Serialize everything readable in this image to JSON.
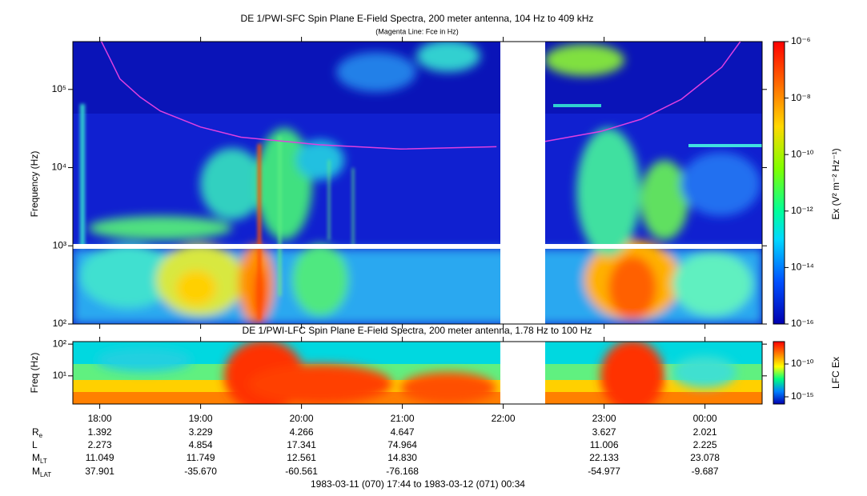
{
  "chart_data": [
    {
      "type": "spectrogram",
      "title": "DE 1/PWI-SFC  Spin Plane E-Field Spectra, 200 meter antenna, 104 Hz to 409 kHz",
      "subtitle": "(Magenta Line: Fce in Hz)",
      "ylabel": "Frequency (Hz)",
      "log_y": true,
      "ylim": [
        100,
        409000
      ],
      "yticks": [
        {
          "value": 100,
          "label": "10²"
        },
        {
          "value": 1000,
          "label": "10³"
        },
        {
          "value": 10000,
          "label": "10⁴"
        },
        {
          "value": 100000,
          "label": "10⁵"
        }
      ],
      "colorbar": {
        "label": "Ex (V² m⁻² Hz⁻¹)",
        "clim": [
          1e-16,
          1e-06
        ],
        "ticks": [
          {
            "value": 1e-06,
            "label": "10⁻⁶"
          },
          {
            "value": 1e-08,
            "label": "10⁻⁸"
          },
          {
            "value": 1e-10,
            "label": "10⁻¹⁰"
          },
          {
            "value": 1e-12,
            "label": "10⁻¹²"
          },
          {
            "value": 1e-14,
            "label": "10⁻¹⁴"
          },
          {
            "value": 1e-16,
            "label": "10⁻¹⁶"
          }
        ]
      },
      "fce": {
        "color": "#e040e0",
        "x": [
          17,
          22,
          28,
          40,
          52,
          76,
          100,
          147,
          195,
          252,
          266,
          281,
          314,
          338,
          362,
          386,
          397
        ],
        "y": [
          409000,
          250000,
          136000,
          80000,
          53000,
          33000,
          24500,
          19600,
          17300,
          18500,
          null,
          21600,
          29000,
          41600,
          75000,
          193000,
          409000
        ]
      }
    },
    {
      "type": "spectrogram",
      "title": "DE 1/PWI-LFC  Spin Plane E-Field Spectra, 200 meter antenna, 1.78 Hz to 100 Hz",
      "ylabel": "Freq (Hz)",
      "log_y": true,
      "ylim": [
        1.3,
        120
      ],
      "yticks": [
        {
          "value": 10,
          "label": "10¹"
        },
        {
          "value": 100,
          "label": "10²"
        }
      ],
      "colorbar": {
        "label": "LFC Ex",
        "clim": [
          8e-17,
          2.6e-07
        ],
        "ticks": [
          {
            "value": 1e-10,
            "label": "10⁻¹⁰"
          },
          {
            "value": 1e-15,
            "label": "10⁻¹⁵"
          }
        ]
      }
    }
  ],
  "x_axis": {
    "xlim": [
      0,
      410
    ],
    "xticks": [
      {
        "value": 16,
        "label": "18:00"
      },
      {
        "value": 76,
        "label": "19:00"
      },
      {
        "value": 136,
        "label": "20:00"
      },
      {
        "value": 196,
        "label": "21:00"
      },
      {
        "value": 256,
        "label": "22:00"
      },
      {
        "value": 316,
        "label": "23:00"
      },
      {
        "value": 376,
        "label": "00:00"
      }
    ]
  },
  "ephemeris": [
    {
      "label": "R",
      "sub": "e",
      "values": [
        "1.392",
        "3.229",
        "4.266",
        "4.647",
        null,
        "3.627",
        "2.021"
      ]
    },
    {
      "label": "L",
      "values": [
        "2.273",
        "4.854",
        "17.341",
        "74.964",
        null,
        "11.006",
        "2.225"
      ]
    },
    {
      "label": "M",
      "sub": "LT",
      "values": [
        "11.049",
        "11.749",
        "12.561",
        "14.830",
        null,
        "22.133",
        "23.078"
      ]
    },
    {
      "label": "M",
      "sub": "LAT",
      "values": [
        "37.901",
        "-35.670",
        "-60.561",
        "-76.168",
        null,
        "-54.977",
        "-9.687"
      ]
    }
  ],
  "footer": "1983-03-11 (070) 17:44 to 1983-03-12 (071) 00:34"
}
